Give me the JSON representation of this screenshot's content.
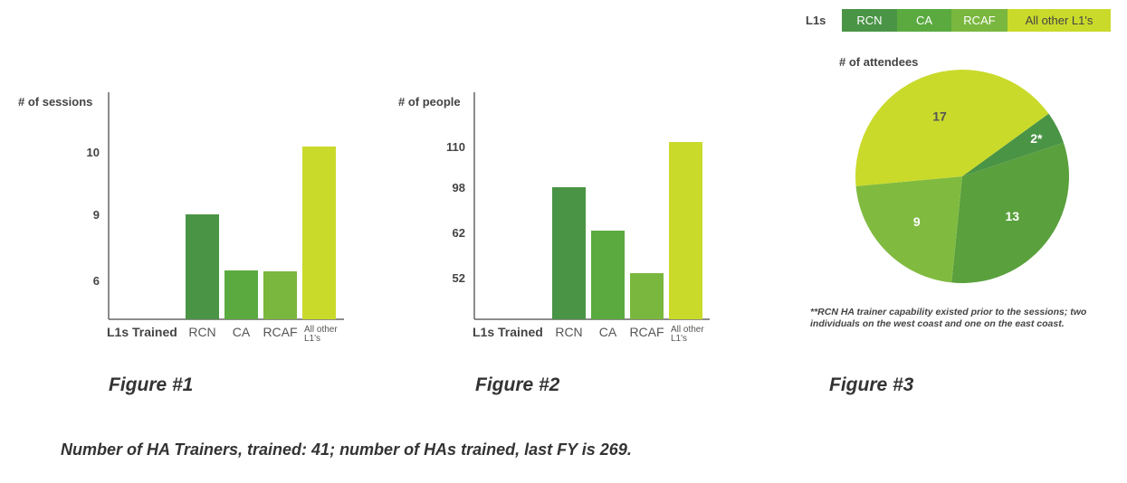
{
  "chart_data": [
    {
      "type": "bar",
      "figure": "Figure #1",
      "ylabel": "# of sessions",
      "xlabel": "L1s Trained",
      "categories": [
        "RCN",
        "CA",
        "RCAF",
        "All other L1's"
      ],
      "values": [
        9,
        6,
        6,
        10
      ],
      "yticks": [
        "10",
        "9",
        "6"
      ],
      "colors": [
        "#4a9446",
        "#5aaa3f",
        "#7ab73e",
        "#c9da2b"
      ]
    },
    {
      "type": "bar",
      "figure": "Figure #2",
      "ylabel": "# of people",
      "xlabel": "L1s Trained",
      "categories": [
        "RCN",
        "CA",
        "RCAF",
        "All other L1's"
      ],
      "values": [
        98,
        62,
        52,
        110
      ],
      "yticks": [
        "110",
        "98",
        "62",
        "52"
      ],
      "colors": [
        "#4a9446",
        "#5aaa3f",
        "#7ab73e",
        "#c9da2b"
      ]
    },
    {
      "type": "pie",
      "figure": "Figure #3",
      "title": "# of attendees",
      "slices": [
        {
          "label": "RCN",
          "value": 2,
          "display": "2*",
          "color": "#4a9446"
        },
        {
          "label": "CA",
          "value": 13,
          "display": "13",
          "color": "#5aa03d"
        },
        {
          "label": "RCAF",
          "value": 9,
          "display": "9",
          "color": "#80bb40"
        },
        {
          "label": "All other L1's",
          "value": 17,
          "display": "17",
          "color": "#c9da2b"
        }
      ],
      "legend_title": "L1s",
      "legend_position": "top",
      "footnote": "**RCN HA trainer capability existed prior to the sessions; two individuals on the west coast and one on the east coast."
    }
  ],
  "captions": {
    "fig1": "Figure #1",
    "fig2": "Figure #2",
    "fig3": "Figure #3"
  },
  "summary": "Number of HA Trainers, trained: 41; number of HAs trained, last FY is 269."
}
